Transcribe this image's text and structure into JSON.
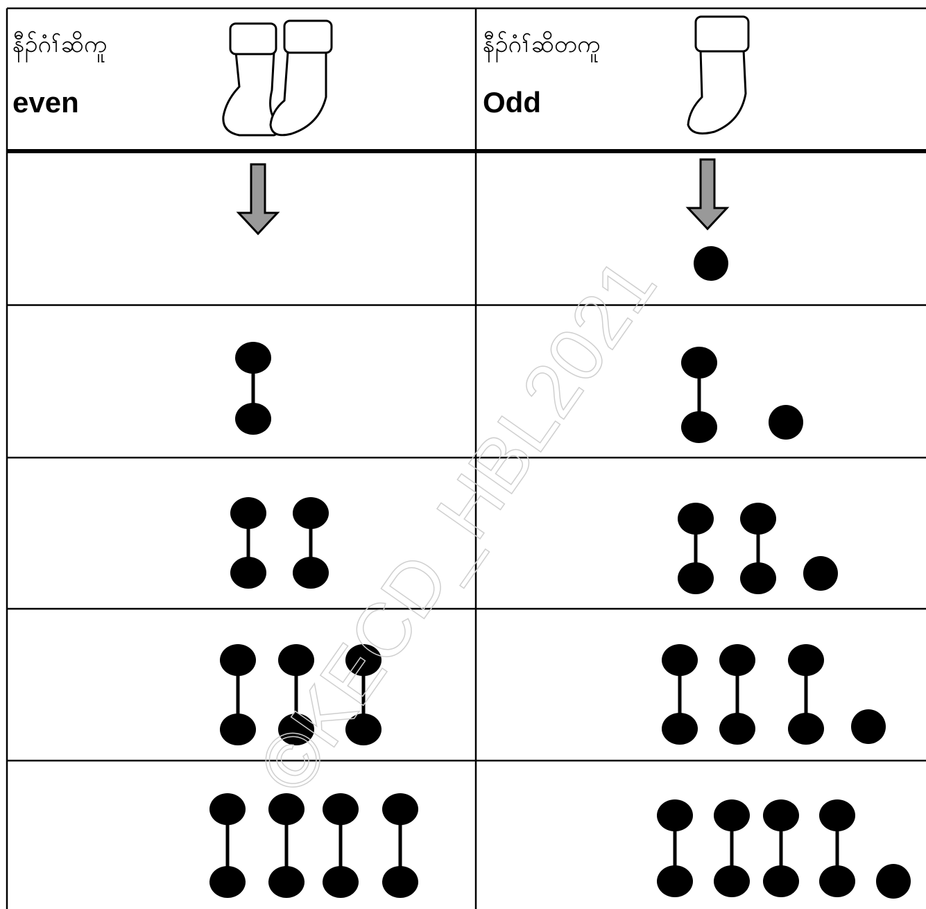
{
  "table": {
    "header": {
      "left": {
        "title": "နီၣ်ဂံၢ်ဆိကူ",
        "label": "even"
      },
      "right": {
        "title": "နီၣ်ဂံၢ်ဆိတကူ",
        "label": "Odd"
      }
    }
  },
  "watermark": "©KECD_HBL2021"
}
